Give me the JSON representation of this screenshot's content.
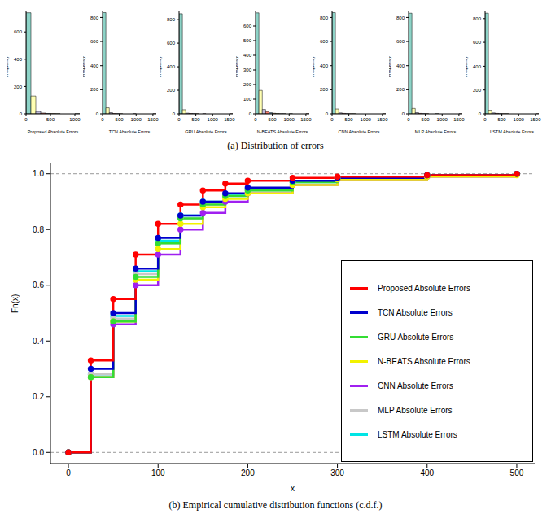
{
  "captions": [
    "(a) Distribution of errors",
    "(b) Empirical cumulative distribution functions (c.d.f.)"
  ],
  "chart_data": [
    {
      "type": "histogram",
      "x_label": "Proposed Absolute Errors",
      "y_label": "Frequency",
      "bins": [
        0,
        100,
        200,
        300,
        400,
        500,
        600,
        700,
        800,
        900,
        1000,
        1100
      ],
      "counts": [
        740,
        130,
        18,
        6,
        3,
        2,
        1,
        0,
        0,
        0,
        1
      ],
      "colors": [
        "#8dd3c7",
        "#ffffb3",
        "#bebada",
        "#fb8072",
        "#80b1d3",
        "#fdb462",
        "#b3de69",
        "#fccde5",
        "#d9d9d9",
        "#bc80bd",
        "#ccebc5"
      ],
      "xlim": [
        0,
        1100
      ],
      "xticks": [
        0,
        500,
        1000
      ],
      "ylim": [
        0,
        750
      ],
      "yticks": [
        0,
        200,
        400,
        600
      ]
    },
    {
      "type": "histogram",
      "x_label": "TCN Absolute Errors",
      "y_label": "Frequency",
      "bins": [
        0,
        100,
        200,
        300,
        400,
        500,
        600,
        700,
        800,
        900,
        1000,
        1100,
        1200,
        1300,
        1400,
        1500,
        1600
      ],
      "counts": [
        840,
        50,
        10,
        3,
        2,
        1,
        0,
        0,
        0,
        1,
        0,
        0,
        0,
        0,
        0,
        1
      ],
      "colors": [
        "#8dd3c7",
        "#ffffb3",
        "#bebada",
        "#fb8072",
        "#80b1d3",
        "#fdb462",
        "#b3de69",
        "#fccde5",
        "#d9d9d9",
        "#bc80bd",
        "#ccebc5",
        "#ffed6f",
        "#8dd3c7",
        "#ffffb3",
        "#bebada",
        "#fb8072"
      ],
      "xlim": [
        0,
        1600
      ],
      "xticks": [
        0,
        500,
        1000,
        1500
      ],
      "ylim": [
        0,
        850
      ],
      "yticks": [
        0,
        200,
        400,
        600,
        800
      ]
    },
    {
      "type": "histogram",
      "x_label": "GRU Absolute Errors",
      "y_label": "Frequency",
      "bins": [
        0,
        100,
        200,
        300,
        400,
        500,
        600,
        700,
        800,
        900,
        1000,
        1100,
        1200,
        1300,
        1400,
        1500,
        1600
      ],
      "counts": [
        850,
        35,
        6,
        3,
        2,
        1,
        0,
        1,
        0,
        0,
        0,
        0,
        0,
        0,
        0,
        1
      ],
      "colors": [
        "#8dd3c7",
        "#ffffb3",
        "#bebada",
        "#fb8072",
        "#80b1d3",
        "#fdb462",
        "#b3de69",
        "#fccde5",
        "#d9d9d9",
        "#bc80bd",
        "#ccebc5",
        "#ffed6f",
        "#8dd3c7",
        "#ffffb3",
        "#bebada",
        "#fb8072"
      ],
      "xlim": [
        0,
        1600
      ],
      "xticks": [
        0,
        500,
        1000,
        1500
      ],
      "ylim": [
        0,
        870
      ],
      "yticks": [
        0,
        200,
        400,
        600,
        800
      ]
    },
    {
      "type": "histogram",
      "x_label": "N-BEATS Absolute Errors",
      "y_label": "Frequency",
      "bins": [
        0,
        100,
        200,
        300,
        400,
        500,
        600,
        700,
        800,
        900,
        1000,
        1100,
        1200,
        1300,
        1400,
        1500,
        1600
      ],
      "counts": [
        690,
        160,
        30,
        15,
        8,
        4,
        2,
        1,
        1,
        0,
        1,
        0,
        0,
        0,
        0,
        1
      ],
      "colors": [
        "#8dd3c7",
        "#ffffb3",
        "#bebada",
        "#fb8072",
        "#80b1d3",
        "#fdb462",
        "#b3de69",
        "#fccde5",
        "#d9d9d9",
        "#bc80bd",
        "#ccebc5",
        "#ffed6f",
        "#8dd3c7",
        "#ffffb3",
        "#bebada",
        "#fb8072"
      ],
      "xlim": [
        0,
        1600
      ],
      "xticks": [
        0,
        500,
        1000,
        1500
      ],
      "ylim": [
        0,
        700
      ],
      "yticks": [
        0,
        100,
        200,
        300,
        400,
        500,
        600
      ]
    },
    {
      "type": "histogram",
      "x_label": "CNN Absolute Errors",
      "y_label": "Frequency",
      "bins": [
        0,
        100,
        200,
        300,
        400,
        500,
        600,
        700,
        800,
        900,
        1000,
        1100,
        1200,
        1300,
        1400,
        1500,
        1600
      ],
      "counts": [
        840,
        40,
        8,
        4,
        2,
        1,
        1,
        0,
        0,
        0,
        0,
        0,
        0,
        0,
        0,
        1
      ],
      "colors": [
        "#8dd3c7",
        "#ffffb3",
        "#bebada",
        "#fb8072",
        "#80b1d3",
        "#fdb462",
        "#b3de69",
        "#fccde5",
        "#d9d9d9",
        "#bc80bd",
        "#ccebc5",
        "#ffed6f",
        "#8dd3c7",
        "#ffffb3",
        "#bebada",
        "#fb8072"
      ],
      "xlim": [
        0,
        1600
      ],
      "xticks": [
        0,
        500,
        1000,
        1500
      ],
      "ylim": [
        0,
        850
      ],
      "yticks": [
        0,
        200,
        400,
        600,
        800
      ]
    },
    {
      "type": "histogram",
      "x_label": "MLP Absolute Errors",
      "y_label": "Frequency",
      "bins": [
        0,
        100,
        200,
        300,
        400,
        500,
        600,
        700,
        800,
        900,
        1000,
        1100,
        1200,
        1300,
        1400,
        1500,
        1600
      ],
      "counts": [
        835,
        45,
        10,
        4,
        2,
        1,
        0,
        0,
        1,
        0,
        0,
        0,
        0,
        0,
        0,
        1
      ],
      "colors": [
        "#8dd3c7",
        "#ffffb3",
        "#bebada",
        "#fb8072",
        "#80b1d3",
        "#fdb462",
        "#b3de69",
        "#fccde5",
        "#d9d9d9",
        "#bc80bd",
        "#ccebc5",
        "#ffed6f",
        "#8dd3c7",
        "#ffffb3",
        "#bebada",
        "#fb8072"
      ],
      "xlim": [
        0,
        1600
      ],
      "xticks": [
        0,
        500,
        1000,
        1500
      ],
      "ylim": [
        0,
        850
      ],
      "yticks": [
        0,
        200,
        400,
        600,
        800
      ]
    },
    {
      "type": "histogram",
      "x_label": "LSTM Absolute Errors",
      "y_label": "Frequency",
      "bins": [
        0,
        100,
        200,
        300,
        400,
        500,
        600,
        700,
        800,
        900,
        1000,
        1100,
        1200,
        1300,
        1400,
        1500,
        1600
      ],
      "counts": [
        845,
        30,
        8,
        4,
        2,
        1,
        1,
        0,
        0,
        0,
        0,
        0,
        0,
        0,
        0,
        1
      ],
      "colors": [
        "#8dd3c7",
        "#ffffb3",
        "#bebada",
        "#fb8072",
        "#80b1d3",
        "#fdb462",
        "#b3de69",
        "#fccde5",
        "#d9d9d9",
        "#bc80bd",
        "#ccebc5",
        "#ffed6f",
        "#8dd3c7",
        "#ffffb3",
        "#bebada",
        "#fb8072"
      ],
      "xlim": [
        0,
        1600
      ],
      "xticks": [
        0,
        500,
        1000,
        1500
      ],
      "ylim": [
        0,
        860
      ],
      "yticks": [
        0,
        200,
        400,
        600,
        800
      ]
    },
    {
      "type": "line",
      "x_label": "x",
      "y_label": "Fn(x)",
      "line_style": "step",
      "marker": "circle",
      "legend": "bottom-right",
      "x": [
        0,
        25,
        50,
        75,
        100,
        125,
        150,
        175,
        200,
        250,
        300,
        400,
        500
      ],
      "series": [
        {
          "name": "Proposed Absolute Errors",
          "color": "#ff0000",
          "values": [
            0,
            0.33,
            0.55,
            0.71,
            0.82,
            0.89,
            0.94,
            0.965,
            0.975,
            0.985,
            0.99,
            0.995,
            1
          ]
        },
        {
          "name": "TCN Absolute Errors",
          "color": "#0000cd",
          "values": [
            0,
            0.3,
            0.5,
            0.66,
            0.77,
            0.85,
            0.9,
            0.93,
            0.95,
            0.975,
            0.985,
            0.995,
            1
          ]
        },
        {
          "name": "GRU Absolute Errors",
          "color": "#33dd33",
          "values": [
            0,
            0.27,
            0.47,
            0.63,
            0.75,
            0.84,
            0.89,
            0.92,
            0.94,
            0.97,
            0.985,
            0.995,
            1
          ]
        },
        {
          "name": "N-BEATS Absolute Errors",
          "color": "#f2f200",
          "values": [
            0,
            0.27,
            0.47,
            0.62,
            0.73,
            0.82,
            0.88,
            0.91,
            0.93,
            0.96,
            0.98,
            0.99,
            0.995
          ]
        },
        {
          "name": "CNN Absolute Errors",
          "color": "#a020f0",
          "values": [
            0,
            0.27,
            0.46,
            0.6,
            0.71,
            0.8,
            0.86,
            0.9,
            0.93,
            0.96,
            0.98,
            0.99,
            1
          ]
        },
        {
          "name": "MLP Absolute Errors",
          "color": "#c8c8c8",
          "values": [
            0,
            0.28,
            0.48,
            0.64,
            0.75,
            0.84,
            0.89,
            0.92,
            0.94,
            0.97,
            0.985,
            0.995,
            1
          ]
        },
        {
          "name": "LSTM Absolute Errors",
          "color": "#00e5e5",
          "values": [
            0,
            0.28,
            0.49,
            0.65,
            0.76,
            0.85,
            0.9,
            0.925,
            0.945,
            0.97,
            0.985,
            0.995,
            1
          ]
        }
      ],
      "xlim": [
        -20,
        520
      ],
      "xticks": [
        0,
        100,
        200,
        300,
        400,
        500
      ],
      "ylim": [
        -0.04,
        1.04
      ],
      "yticks": [
        {
          "value": 0,
          "label": "0.0"
        },
        0.2,
        0.4,
        0.6,
        0.8,
        {
          "value": 1,
          "label": "1.0"
        }
      ],
      "hlines": [
        0,
        1
      ]
    }
  ]
}
